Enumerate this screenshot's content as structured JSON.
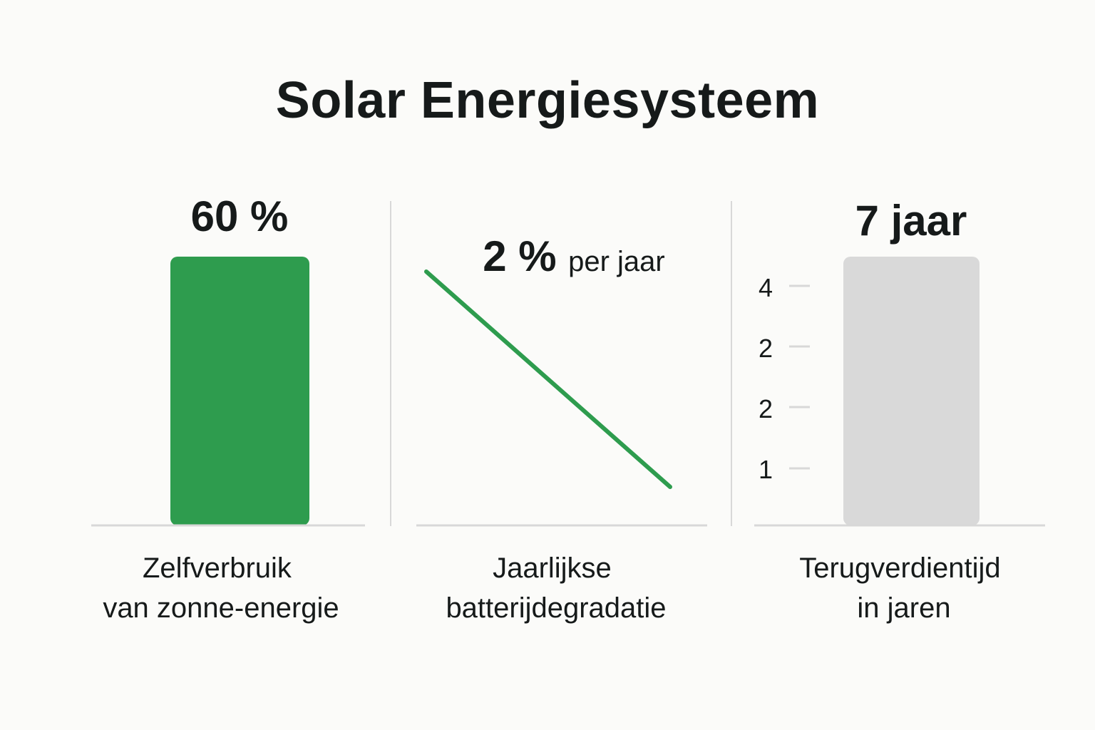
{
  "title": "Solar Energiesysteem",
  "colors": {
    "accent": "#2e9c4e",
    "payback_bar": "#d9d9d9",
    "axis": "#d8d8d8",
    "text": "#161a1a",
    "background": "#fbfbf9"
  },
  "chart_data": [
    {
      "type": "bar",
      "value_label": "60 %",
      "values": [
        60
      ],
      "categories": [
        ""
      ],
      "label_lines": [
        "Zelfverbruik",
        "van zonne-energie"
      ]
    },
    {
      "type": "line",
      "value_label_main": "2 %",
      "value_label_unit": "per jaar",
      "series": [
        {
          "values": [
            100,
            0
          ]
        }
      ],
      "label_lines": [
        "Jaarlijkse",
        "batterijdegradatie"
      ]
    },
    {
      "type": "bar",
      "value_label": "7 jaar",
      "values": [
        7
      ],
      "categories": [
        ""
      ],
      "y_tick_labels": [
        "4",
        "2",
        "2",
        "1"
      ],
      "label_lines": [
        "Terugverdientijd",
        "in jaren"
      ]
    }
  ]
}
